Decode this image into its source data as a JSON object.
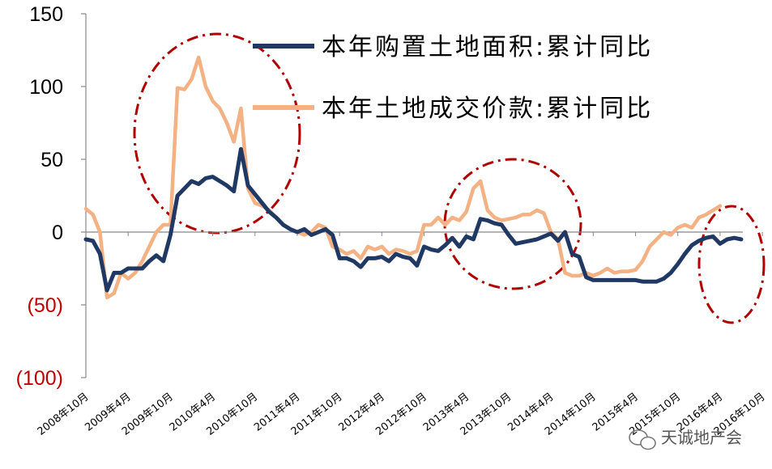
{
  "chart_data": {
    "type": "line",
    "title": "",
    "xlabel": "",
    "ylabel": "",
    "ylim": [
      -100,
      150
    ],
    "yticks": [
      {
        "value": 150,
        "label": "150",
        "color": "#000000"
      },
      {
        "value": 100,
        "label": "100",
        "color": "#000000"
      },
      {
        "value": 50,
        "label": "50",
        "color": "#000000"
      },
      {
        "value": 0,
        "label": "0",
        "color": "#000000"
      },
      {
        "value": -50,
        "label": "(50)",
        "color": "#c00000"
      },
      {
        "value": -100,
        "label": "(100)",
        "color": "#c00000"
      }
    ],
    "xticks": [
      {
        "index": 0,
        "label": "2008年10月"
      },
      {
        "index": 6,
        "label": "2009年4月"
      },
      {
        "index": 12,
        "label": "2009年10月"
      },
      {
        "index": 18,
        "label": "2010年4月"
      },
      {
        "index": 24,
        "label": "2010年10月"
      },
      {
        "index": 30,
        "label": "2011年4月"
      },
      {
        "index": 36,
        "label": "2011年10月"
      },
      {
        "index": 42,
        "label": "2012年4月"
      },
      {
        "index": 48,
        "label": "2012年10月"
      },
      {
        "index": 54,
        "label": "2013年4月"
      },
      {
        "index": 60,
        "label": "2013年10月"
      },
      {
        "index": 66,
        "label": "2014年4月"
      },
      {
        "index": 72,
        "label": "2014年10月"
      },
      {
        "index": 78,
        "label": "2015年4月"
      },
      {
        "index": 84,
        "label": "2015年10月"
      },
      {
        "index": 90,
        "label": "2016年4月"
      },
      {
        "index": 96,
        "label": "2016年10月"
      }
    ],
    "grid": false,
    "legend_position": "top-right",
    "series": [
      {
        "name": "本年购置土地面积:累计同比",
        "color": "#1f3864",
        "values": [
          -5,
          -6,
          -15,
          -40,
          -28,
          -28,
          -25,
          -25,
          -25,
          -20,
          -16,
          -20,
          -2,
          25,
          30,
          35,
          33,
          37,
          38,
          35,
          32,
          28,
          57,
          32,
          26,
          20,
          14,
          10,
          5,
          2,
          0,
          2,
          -2,
          0,
          2,
          -2,
          -18,
          -18,
          -20,
          -24,
          -18,
          -18,
          -17,
          -20,
          -15,
          -17,
          -18,
          -23,
          -10,
          -12,
          -13,
          -9,
          -4,
          -10,
          -3,
          -5,
          9,
          8,
          6,
          5,
          -2,
          -8,
          -7,
          -6,
          -5,
          -3,
          -1,
          -6,
          0,
          -15,
          -17,
          -31,
          -33,
          -33,
          -33,
          -33,
          -33,
          -33,
          -33,
          -34,
          -34,
          -34,
          -32,
          -28,
          -22,
          -15,
          -9,
          -6,
          -4,
          -3,
          -8,
          -5,
          -4,
          -5
        ]
      },
      {
        "name": "本年土地成交价款:累计同比",
        "color": "#f4b183",
        "values": [
          16,
          12,
          0,
          -45,
          -42,
          -28,
          -32,
          -28,
          -20,
          -10,
          0,
          5,
          5,
          99,
          98,
          105,
          120,
          100,
          90,
          85,
          75,
          62,
          85,
          30,
          20,
          18,
          15,
          10,
          5,
          2,
          0,
          -2,
          0,
          5,
          3,
          -10,
          -12,
          -15,
          -13,
          -18,
          -10,
          -12,
          -10,
          -15,
          -12,
          -13,
          -15,
          -13,
          5,
          5,
          10,
          5,
          10,
          8,
          14,
          30,
          35,
          15,
          10,
          8,
          9,
          10,
          12,
          12,
          15,
          13,
          0,
          -5,
          -28,
          -30,
          -30,
          -28,
          -30,
          -28,
          -25,
          -28,
          -27,
          -27,
          -26,
          -20,
          -10,
          -5,
          0,
          -2,
          3,
          5,
          3,
          10,
          12,
          15,
          18
        ]
      }
    ],
    "annotations": {
      "ellipses_color": "#b00000"
    },
    "watermark": "天诚地产会",
    "watermark_icon": "wechat-icon"
  }
}
